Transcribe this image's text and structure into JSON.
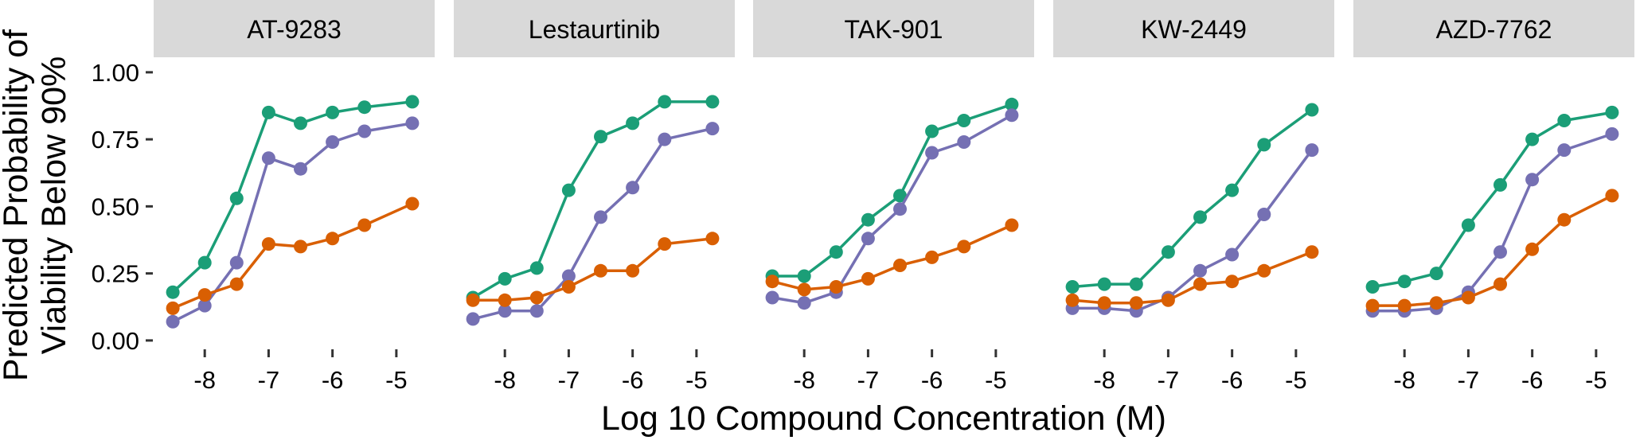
{
  "chart_data": {
    "type": "line",
    "xlabel": "Log 10 Compound Concentration (M)",
    "ylabel": "Predicted Probability of Viability Below 90%",
    "xlim": [
      -8.8,
      -4.4
    ],
    "ylim": [
      -0.03,
      1.05
    ],
    "x_ticks": [
      -8,
      -7,
      -6,
      -5
    ],
    "y_ticks": [
      0.0,
      0.25,
      0.5,
      0.75,
      1.0
    ],
    "y_tick_labels": [
      "0.00",
      "0.25",
      "0.50",
      "0.75",
      "1.00"
    ],
    "x_tick_labels": [
      "-8",
      "-7",
      "-6",
      "-5"
    ],
    "grid": false,
    "legend": "none",
    "colors": [
      "#1b9e77",
      "#7570b3",
      "#d95f02"
    ],
    "x": [
      -8.5,
      -8.0,
      -7.5,
      -7.0,
      -6.5,
      -6.0,
      -5.5,
      -4.75
    ],
    "panels": [
      {
        "title": "AT-9283",
        "series": [
          {
            "color": "#1b9e77",
            "values": [
              0.18,
              0.29,
              0.53,
              0.85,
              0.81,
              0.85,
              0.87,
              0.89
            ]
          },
          {
            "color": "#7570b3",
            "values": [
              0.07,
              0.13,
              0.29,
              0.68,
              0.64,
              0.74,
              0.78,
              0.81
            ]
          },
          {
            "color": "#d95f02",
            "values": [
              0.12,
              0.17,
              0.21,
              0.36,
              0.35,
              0.38,
              0.43,
              0.51
            ]
          }
        ]
      },
      {
        "title": "Lestaurtinib",
        "series": [
          {
            "color": "#1b9e77",
            "values": [
              0.16,
              0.23,
              0.27,
              0.56,
              0.76,
              0.81,
              0.89,
              0.89
            ]
          },
          {
            "color": "#7570b3",
            "values": [
              0.08,
              0.11,
              0.11,
              0.24,
              0.46,
              0.57,
              0.75,
              0.79
            ]
          },
          {
            "color": "#d95f02",
            "values": [
              0.15,
              0.15,
              0.16,
              0.2,
              0.26,
              0.26,
              0.36,
              0.38
            ]
          }
        ]
      },
      {
        "title": "TAK-901",
        "series": [
          {
            "color": "#1b9e77",
            "values": [
              0.24,
              0.24,
              0.33,
              0.45,
              0.54,
              0.78,
              0.82,
              0.88
            ]
          },
          {
            "color": "#7570b3",
            "values": [
              0.16,
              0.14,
              0.18,
              0.38,
              0.49,
              0.7,
              0.74,
              0.84
            ]
          },
          {
            "color": "#d95f02",
            "values": [
              0.22,
              0.19,
              0.2,
              0.23,
              0.28,
              0.31,
              0.35,
              0.43
            ]
          }
        ]
      },
      {
        "title": "KW-2449",
        "series": [
          {
            "color": "#1b9e77",
            "values": [
              0.2,
              0.21,
              0.21,
              0.33,
              0.46,
              0.56,
              0.73,
              0.86
            ]
          },
          {
            "color": "#7570b3",
            "values": [
              0.12,
              0.12,
              0.11,
              0.16,
              0.26,
              0.32,
              0.47,
              0.71
            ]
          },
          {
            "color": "#d95f02",
            "values": [
              0.15,
              0.14,
              0.14,
              0.15,
              0.21,
              0.22,
              0.26,
              0.33
            ]
          }
        ]
      },
      {
        "title": "AZD-7762",
        "series": [
          {
            "color": "#1b9e77",
            "values": [
              0.2,
              0.22,
              0.25,
              0.43,
              0.58,
              0.75,
              0.82,
              0.85
            ]
          },
          {
            "color": "#7570b3",
            "values": [
              0.11,
              0.11,
              0.12,
              0.18,
              0.33,
              0.6,
              0.71,
              0.77
            ]
          },
          {
            "color": "#d95f02",
            "values": [
              0.13,
              0.13,
              0.14,
              0.16,
              0.21,
              0.34,
              0.45,
              0.54
            ]
          }
        ]
      }
    ]
  }
}
